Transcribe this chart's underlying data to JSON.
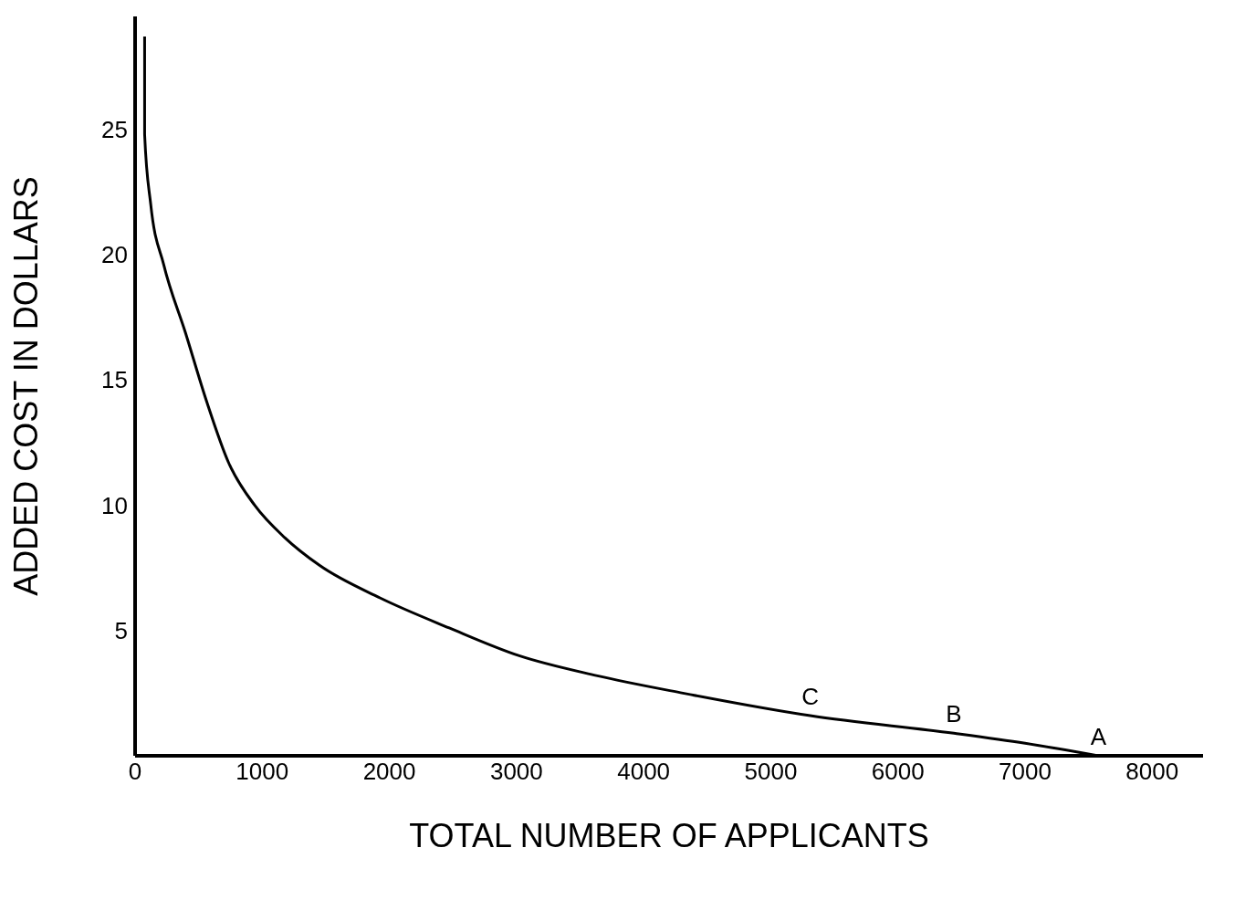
{
  "chart_data": {
    "type": "line",
    "xlabel": "TOTAL NUMBER OF APPLICANTS",
    "ylabel": "ADDED COST IN DOLLARS",
    "xlim": [
      0,
      8400
    ],
    "xticks": [
      0,
      1000,
      2000,
      3000,
      4000,
      5000,
      6000,
      7000,
      8000
    ],
    "ylim": [
      0,
      29.5
    ],
    "yticks": [
      5,
      10,
      15,
      20,
      25
    ],
    "series": [
      {
        "color": "#000000",
        "x": [
          75,
          75,
          123,
          225,
          395,
          565,
          735,
          940,
          1178,
          1450,
          1926,
          2471,
          3016,
          3628,
          4309,
          5310,
          6440,
          7000,
          7577
        ],
        "values": [
          28.7,
          24.8,
          22.0,
          19.6,
          16.9,
          14.1,
          11.7,
          10.0,
          8.7,
          7.6,
          6.3,
          5.1,
          4.0,
          3.2,
          2.5,
          1.6,
          0.9,
          0.5,
          0.0
        ]
      }
    ],
    "annotations": [
      {
        "text": "C",
        "x": 5310,
        "y": 1.6
      },
      {
        "text": "B",
        "x": 6440,
        "y": 0.9
      },
      {
        "text": "A",
        "x": 7577,
        "y": 0.0
      }
    ]
  }
}
